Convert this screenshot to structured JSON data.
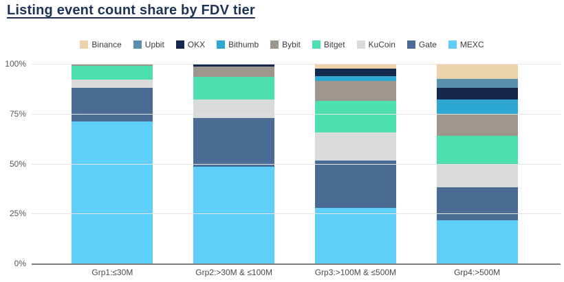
{
  "title": "Listing event count share by FDV tier",
  "chart_data": {
    "type": "bar",
    "stacked": true,
    "unit": "%",
    "title": "Listing event count share by FDV tier",
    "categories": [
      "Grp1:≤30M",
      "Grp2:>30M & ≤100M",
      "Grp3:>100M & ≤500M",
      "Grp4:>500M"
    ],
    "series": [
      {
        "name": "Binance",
        "color": "#ecd2ab",
        "values": [
          0,
          0,
          2.5,
          7.5
        ]
      },
      {
        "name": "Upbit",
        "color": "#5b8fae",
        "values": [
          0,
          0,
          0,
          4.5
        ]
      },
      {
        "name": "OKX",
        "color": "#14294b",
        "values": [
          0.5,
          1.5,
          3.5,
          6
        ]
      },
      {
        "name": "Bithumb",
        "color": "#2ba7d1",
        "values": [
          0,
          0,
          2.5,
          7
        ]
      },
      {
        "name": "Bybit",
        "color": "#9c968c",
        "values": [
          0.5,
          5,
          10,
          11
        ]
      },
      {
        "name": "Bitget",
        "color": "#4de0ae",
        "values": [
          7,
          11.5,
          16,
          14
        ]
      },
      {
        "name": "KuCoin",
        "color": "#d8dadc",
        "values": [
          4,
          9,
          14,
          12
        ]
      },
      {
        "name": "Gate",
        "color": "#4a6b93",
        "values": [
          17,
          24.5,
          23.5,
          16.5
        ]
      },
      {
        "name": "MEXC",
        "color": "#5fcef8",
        "values": [
          71,
          48.5,
          28,
          21.5
        ]
      }
    ],
    "xlabel": "",
    "ylabel": "",
    "ylim": [
      0,
      100
    ],
    "yticks": [
      "0%",
      "25%",
      "50%",
      "75%",
      "100%"
    ],
    "grid": true,
    "legend_position": "top",
    "axis_line_color": "#7f7f7f",
    "gridline_color": "#e4e4e4"
  }
}
